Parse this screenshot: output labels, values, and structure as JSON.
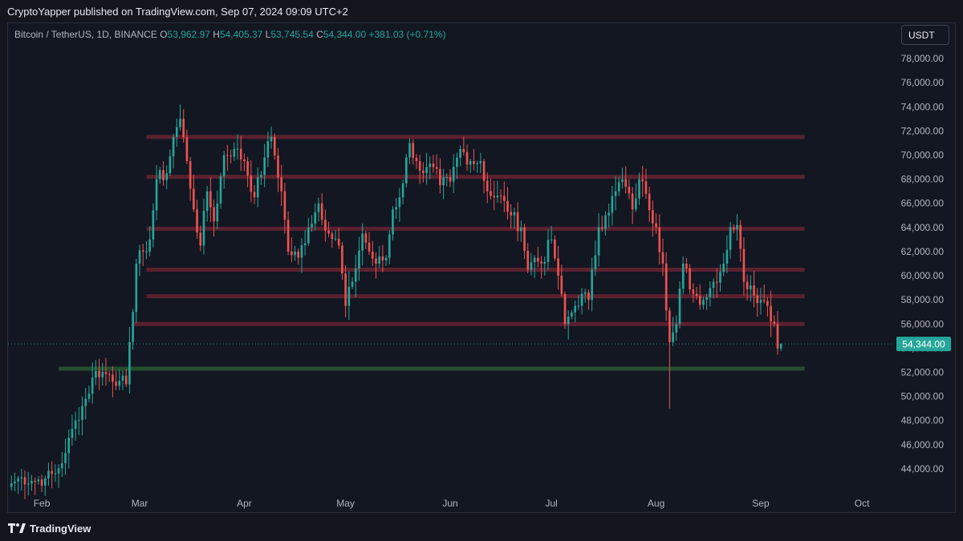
{
  "header": {
    "published_text": "CryptoYapper published on TradingView.com, Sep 07, 2024 09:09 UTC+2"
  },
  "legend": {
    "symbol": "Bitcoin / TetherUS, 1D, BINANCE",
    "o_label": "O",
    "o_value": "53,962.97",
    "h_label": "H",
    "h_value": "54,405.37",
    "l_label": "L",
    "l_value": "53,745.54",
    "c_label": "C",
    "c_value": "54,344.00",
    "change": "+381.03 (+0.71%)"
  },
  "currency_button": "USDT",
  "footer": {
    "brand": "TradingView"
  },
  "colors": {
    "up": "#26a69a",
    "down": "#ef5350",
    "level_red": "#5c1f2b",
    "level_green": "#1f4d2a",
    "background": "#131722"
  },
  "chart_data": {
    "type": "candlestick",
    "title": "",
    "ylim": [
      42200,
      79000
    ],
    "x_range": [
      "2024-01-22",
      "2024-10-10"
    ],
    "y_ticks": [
      44000,
      46000,
      48000,
      50000,
      52000,
      54000,
      56000,
      58000,
      60000,
      62000,
      64000,
      66000,
      68000,
      70000,
      72000,
      74000,
      76000,
      78000
    ],
    "y_tick_labels": [
      "44,000.00",
      "46,000.00",
      "48,000.00",
      "50,000.00",
      "52,000.00",
      "54,000.00",
      "56,000.00",
      "58,000.00",
      "60,000.00",
      "62,000.00",
      "64,000.00",
      "66,000.00",
      "68,000.00",
      "70,000.00",
      "72,000.00",
      "74,000.00",
      "76,000.00",
      "78,000.00"
    ],
    "x_ticks": [
      {
        "label": "Feb",
        "date": "2024-02-01"
      },
      {
        "label": "Mar",
        "date": "2024-03-01"
      },
      {
        "label": "Apr",
        "date": "2024-04-01"
      },
      {
        "label": "May",
        "date": "2024-05-01"
      },
      {
        "label": "Jun",
        "date": "2024-06-01"
      },
      {
        "label": "Jul",
        "date": "2024-07-01"
      },
      {
        "label": "Aug",
        "date": "2024-08-01"
      },
      {
        "label": "Sep",
        "date": "2024-09-01"
      },
      {
        "label": "Oct",
        "date": "2024-10-01"
      }
    ],
    "last_price": 54344,
    "last_price_label": "54,344.00",
    "levels": [
      {
        "price": 71500,
        "start": "2024-03-03",
        "end": "2024-09-14",
        "color": "red"
      },
      {
        "price": 68200,
        "start": "2024-03-03",
        "end": "2024-09-14",
        "color": "red"
      },
      {
        "price": 63900,
        "start": "2024-03-03",
        "end": "2024-09-14",
        "color": "red"
      },
      {
        "price": 60500,
        "start": "2024-03-03",
        "end": "2024-09-14",
        "color": "red"
      },
      {
        "price": 58300,
        "start": "2024-03-03",
        "end": "2024-09-14",
        "color": "red"
      },
      {
        "price": 56000,
        "start": "2024-02-28",
        "end": "2024-09-14",
        "color": "red"
      },
      {
        "price": 52300,
        "start": "2024-02-06",
        "end": "2024-09-14",
        "color": "green"
      }
    ],
    "candle_anchors": [
      [
        "2024-01-23",
        42800
      ],
      [
        "2024-01-26",
        43300
      ],
      [
        "2024-01-29",
        43000
      ],
      [
        "2024-02-02",
        43200
      ],
      [
        "2024-02-05",
        43600
      ],
      [
        "2024-02-08",
        45300
      ],
      [
        "2024-02-11",
        48000
      ],
      [
        "2024-02-14",
        49800
      ],
      [
        "2024-02-17",
        52100
      ],
      [
        "2024-02-21",
        51800
      ],
      [
        "2024-02-24",
        51300
      ],
      [
        "2024-02-26",
        51000
      ],
      [
        "2024-02-27",
        54500
      ],
      [
        "2024-02-28",
        57000
      ],
      [
        "2024-02-29",
        61000
      ],
      [
        "2024-03-02",
        62000
      ],
      [
        "2024-03-04",
        63000
      ],
      [
        "2024-03-06",
        68000
      ],
      [
        "2024-03-09",
        68500
      ],
      [
        "2024-03-11",
        71500
      ],
      [
        "2024-03-13",
        73000
      ],
      [
        "2024-03-15",
        69500
      ],
      [
        "2024-03-17",
        65500
      ],
      [
        "2024-03-19",
        62500
      ],
      [
        "2024-03-21",
        67000
      ],
      [
        "2024-03-23",
        64500
      ],
      [
        "2024-03-26",
        70000
      ],
      [
        "2024-03-29",
        70500
      ],
      [
        "2024-04-01",
        69500
      ],
      [
        "2024-04-04",
        66500
      ],
      [
        "2024-04-07",
        69800
      ],
      [
        "2024-04-09",
        71500
      ],
      [
        "2024-04-12",
        67000
      ],
      [
        "2024-04-14",
        62000
      ],
      [
        "2024-04-17",
        61500
      ],
      [
        "2024-04-20",
        64000
      ],
      [
        "2024-04-23",
        66000
      ],
      [
        "2024-04-26",
        63500
      ],
      [
        "2024-04-29",
        62500
      ],
      [
        "2024-05-01",
        57500
      ],
      [
        "2024-05-03",
        59500
      ],
      [
        "2024-05-06",
        63500
      ],
      [
        "2024-05-08",
        62000
      ],
      [
        "2024-05-10",
        61000
      ],
      [
        "2024-05-13",
        61500
      ],
      [
        "2024-05-15",
        65500
      ],
      [
        "2024-05-17",
        66500
      ],
      [
        "2024-05-20",
        71000
      ],
      [
        "2024-05-22",
        69500
      ],
      [
        "2024-05-24",
        68500
      ],
      [
        "2024-05-27",
        69000
      ],
      [
        "2024-05-29",
        67500
      ],
      [
        "2024-06-01",
        67800
      ],
      [
        "2024-06-04",
        70500
      ],
      [
        "2024-06-07",
        69500
      ],
      [
        "2024-06-10",
        69500
      ],
      [
        "2024-06-12",
        67000
      ],
      [
        "2024-06-14",
        66500
      ],
      [
        "2024-06-17",
        66200
      ],
      [
        "2024-06-19",
        65000
      ],
      [
        "2024-06-22",
        64000
      ],
      [
        "2024-06-24",
        60500
      ],
      [
        "2024-06-26",
        61500
      ],
      [
        "2024-06-28",
        61000
      ],
      [
        "2024-07-01",
        63000
      ],
      [
        "2024-07-03",
        60000
      ],
      [
        "2024-07-05",
        56000
      ],
      [
        "2024-07-08",
        57500
      ],
      [
        "2024-07-10",
        58500
      ],
      [
        "2024-07-12",
        58000
      ],
      [
        "2024-07-15",
        64000
      ],
      [
        "2024-07-17",
        65000
      ],
      [
        "2024-07-20",
        67000
      ],
      [
        "2024-07-22",
        68000
      ],
      [
        "2024-07-25",
        65500
      ],
      [
        "2024-07-27",
        68000
      ],
      [
        "2024-07-29",
        66800
      ],
      [
        "2024-08-01",
        64000
      ],
      [
        "2024-08-03",
        61000
      ],
      [
        "2024-08-05",
        54500
      ],
      [
        "2024-08-07",
        56000
      ],
      [
        "2024-08-09",
        61000
      ],
      [
        "2024-08-12",
        58500
      ],
      [
        "2024-08-15",
        58000
      ],
      [
        "2024-08-18",
        59500
      ],
      [
        "2024-08-21",
        61000
      ],
      [
        "2024-08-23",
        64000
      ],
      [
        "2024-08-25",
        64200
      ],
      [
        "2024-08-27",
        59500
      ],
      [
        "2024-08-29",
        59200
      ],
      [
        "2024-09-01",
        58000
      ],
      [
        "2024-09-03",
        57500
      ],
      [
        "2024-09-05",
        56000
      ],
      [
        "2024-09-06",
        53962.97
      ],
      [
        "2024-09-07",
        54344
      ]
    ]
  }
}
